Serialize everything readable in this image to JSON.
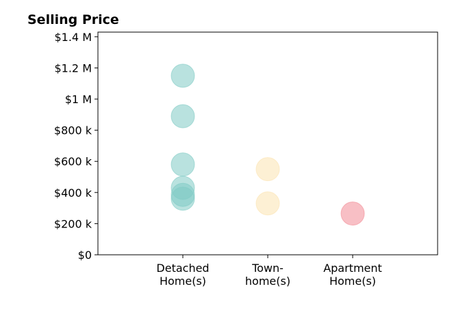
{
  "chart_data": {
    "type": "scatter",
    "title": "Selling Price",
    "xlabel": "",
    "ylabel": "",
    "categories": [
      [
        "Detached",
        "Home(s)"
      ],
      [
        "Town-",
        "home(s)"
      ],
      [
        "Apartment",
        "Home(s)"
      ]
    ],
    "ylim": [
      0,
      1430000
    ],
    "yticks": [
      0,
      200000,
      400000,
      600000,
      800000,
      1000000,
      1200000,
      1400000
    ],
    "ytick_labels": [
      "$0",
      "$200 k",
      "$400 k",
      "$600 k",
      "$800 k",
      "$1 M",
      "$1.2 M",
      "$1.4 M"
    ],
    "grid": false,
    "points": [
      {
        "category": 0,
        "value": 1150000
      },
      {
        "category": 0,
        "value": 890000
      },
      {
        "category": 0,
        "value": 580000
      },
      {
        "category": 0,
        "value": 430000
      },
      {
        "category": 0,
        "value": 385000
      },
      {
        "category": 0,
        "value": 360000
      },
      {
        "category": 1,
        "value": 550000
      },
      {
        "category": 1,
        "value": 330000
      },
      {
        "category": 2,
        "value": 265000
      }
    ],
    "colors": [
      "#80cbc4",
      "#fbe3b1",
      "#f28b95"
    ]
  }
}
